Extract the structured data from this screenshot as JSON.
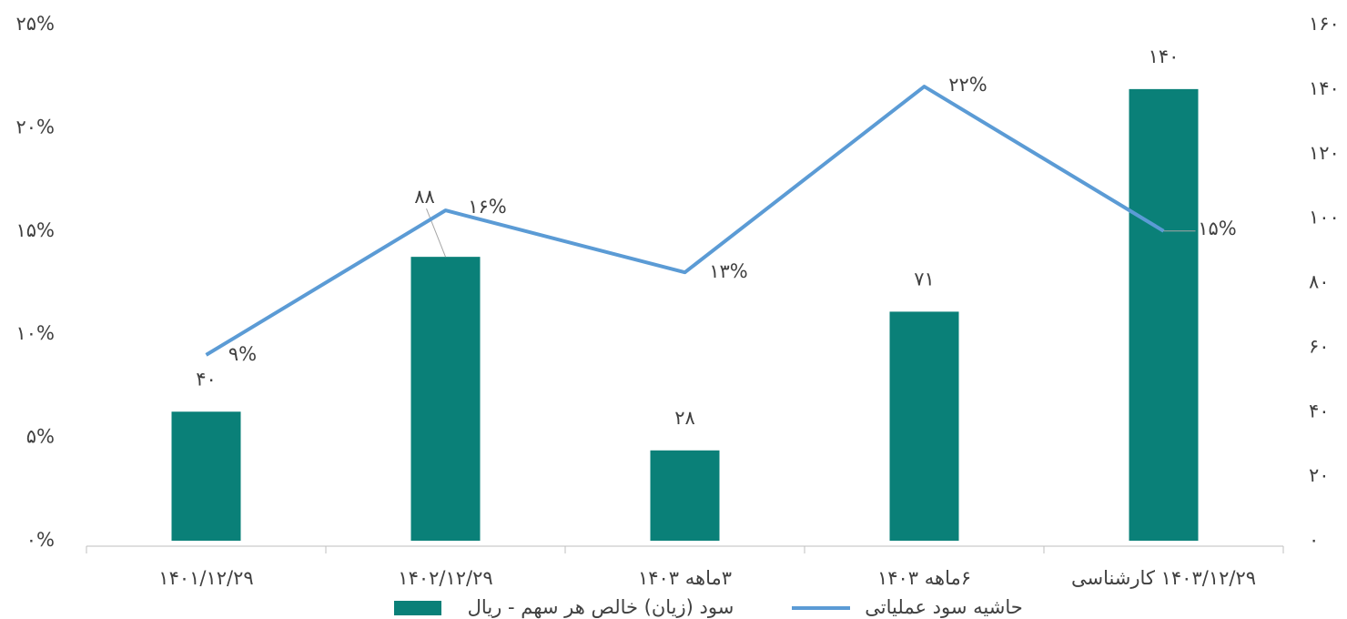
{
  "chart_data": {
    "type": "combo",
    "categories": [
      "۱۴۰۱/۱۲/۲۹",
      "۱۴۰۲/۱۲/۲۹",
      "۳ماهه ۱۴۰۳",
      "۶ماهه ۱۴۰۳",
      "۱۴۰۳/۱۲/۲۹ کارشناسی"
    ],
    "series": [
      {
        "name": "سود (زیان) خالص هر سهم - ریال",
        "type": "bar",
        "axis": "y2",
        "color": "#0a8078",
        "values": [
          40,
          88,
          28,
          71,
          140
        ],
        "value_labels": [
          "۴۰",
          "۸۸",
          "۲۸",
          "۷۱",
          "۱۴۰"
        ]
      },
      {
        "name": "حاشیه سود عملیاتی",
        "type": "line",
        "color": "#5b9bd5",
        "values": [
          9,
          16,
          13,
          22,
          15
        ],
        "value_labels": [
          "۹%",
          "۱۶%",
          "۱۳%",
          "۲۲%",
          "۱۵%"
        ]
      }
    ],
    "ylim": [
      0,
      25
    ],
    "yticks": [
      {
        "value": 0,
        "label": "۰%"
      },
      {
        "value": 5,
        "label": "۵%"
      },
      {
        "value": 10,
        "label": "۱۰%"
      },
      {
        "value": 15,
        "label": "۱۵%"
      },
      {
        "value": 20,
        "label": "۲۰%"
      },
      {
        "value": 25,
        "label": "۲۵%"
      }
    ],
    "y2lim": [
      0,
      160
    ],
    "y2ticks": [
      {
        "value": 0,
        "label": "۰"
      },
      {
        "value": 20,
        "label": "۲۰"
      },
      {
        "value": 40,
        "label": "۴۰"
      },
      {
        "value": 60,
        "label": "۶۰"
      },
      {
        "value": 80,
        "label": "۸۰"
      },
      {
        "value": 100,
        "label": "۱۰۰"
      },
      {
        "value": 120,
        "label": "۱۲۰"
      },
      {
        "value": 140,
        "label": "۱۴۰"
      },
      {
        "value": 160,
        "label": "۱۶۰"
      }
    ],
    "grid": false,
    "legend": "bottom"
  }
}
